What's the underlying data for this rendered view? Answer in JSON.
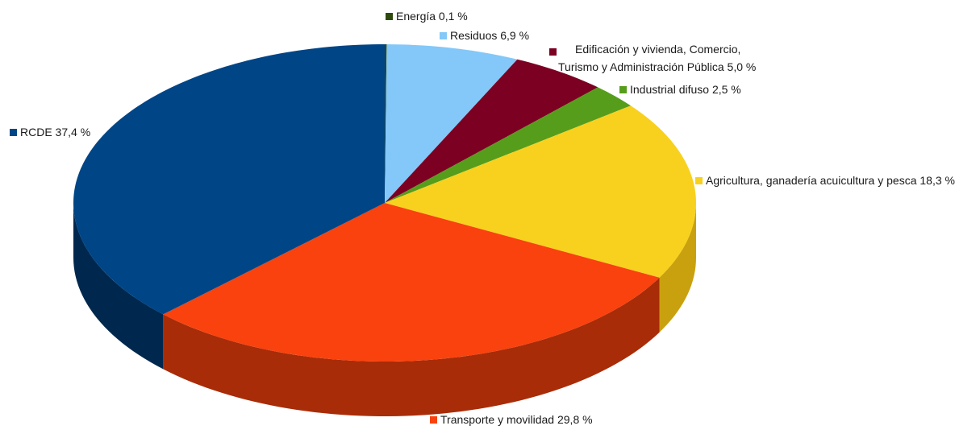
{
  "chart_data": {
    "type": "pie",
    "style": "3d",
    "title": "",
    "slices": [
      {
        "label": "Energía 0,1 %",
        "value": 0.1,
        "color": "#2e4a0f",
        "side_color": "#1c2e08"
      },
      {
        "label": "Residuos 6,9 %",
        "value": 6.9,
        "color": "#83c8f8",
        "side_color": "#5a9ccc"
      },
      {
        "label": "Edificación y vivienda, Comercio,",
        "label2": "Turismo y Administración Pública 5,0 %",
        "value": 5.0,
        "color": "#7c0021",
        "side_color": "#4e0014"
      },
      {
        "label": "Industrial difuso 2,5 %",
        "value": 2.5,
        "color": "#579d1c",
        "side_color": "#3a6a12"
      },
      {
        "label": "Agricultura, ganadería acuicultura y pesca 18,3 %",
        "value": 18.3,
        "color": "#f8d11f",
        "side_color": "#c9a10e"
      },
      {
        "label": "Transporte y movilidad 29,8 %",
        "value": 29.8,
        "color": "#f9420e",
        "side_color": "#a82c08"
      },
      {
        "label": "RCDE 37,4 %",
        "value": 37.4,
        "color": "#004586",
        "side_color": "#00284e"
      }
    ]
  }
}
